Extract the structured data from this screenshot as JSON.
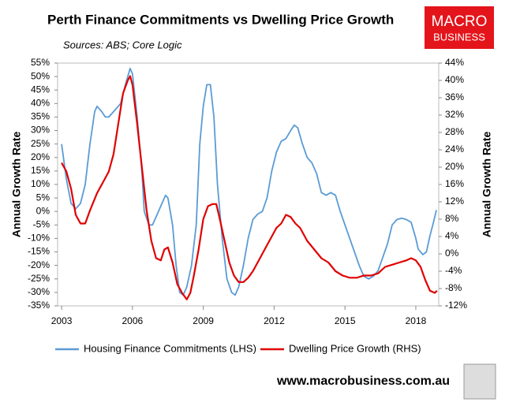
{
  "chart_data": {
    "type": "line",
    "title": "Perth Finance Commitments vs Dwelling Price Growth",
    "subtitle": "Sources: ABS; Core Logic",
    "ylabel": "Annual Growth Rate",
    "y2label": "Annual Growth Rate",
    "logo": [
      "MACRO",
      "BUSINESS"
    ],
    "footer": "www.macrobusiness.com.au",
    "xlim": [
      2002.83,
      2018.97
    ],
    "xticks": [
      2003,
      2006,
      2009,
      2012,
      2015,
      2018
    ],
    "ylim": [
      -35,
      55
    ],
    "yticks": [
      {
        "value": -35,
        "label": "-35%"
      },
      {
        "value": -30,
        "label": "-30%"
      },
      {
        "value": -25,
        "label": "-25%"
      },
      {
        "value": -20,
        "label": "-20%"
      },
      {
        "value": -15,
        "label": "-15%"
      },
      {
        "value": -10,
        "label": "-10%"
      },
      {
        "value": -5,
        "label": "-5%"
      },
      {
        "value": 0,
        "label": "0%"
      },
      {
        "value": 5,
        "label": "5%"
      },
      {
        "value": 10,
        "label": "10%"
      },
      {
        "value": 15,
        "label": "15%"
      },
      {
        "value": 20,
        "label": "20%"
      },
      {
        "value": 25,
        "label": "25%"
      },
      {
        "value": 30,
        "label": "30%"
      },
      {
        "value": 35,
        "label": "35%"
      },
      {
        "value": 40,
        "label": "40%"
      },
      {
        "value": 45,
        "label": "45%"
      },
      {
        "value": 50,
        "label": "50%"
      },
      {
        "value": 55,
        "label": "55%"
      }
    ],
    "y2lim": [
      -12,
      44
    ],
    "y2ticks": [
      {
        "value": -12,
        "label": "-12%"
      },
      {
        "value": -8,
        "label": "-8%"
      },
      {
        "value": -4,
        "label": "-4%"
      },
      {
        "value": 0,
        "label": "0%"
      },
      {
        "value": 4,
        "label": "4%"
      },
      {
        "value": 8,
        "label": "8%"
      },
      {
        "value": 12,
        "label": "12%"
      },
      {
        "value": 16,
        "label": "16%"
      },
      {
        "value": 20,
        "label": "20%"
      },
      {
        "value": 24,
        "label": "24%"
      },
      {
        "value": 28,
        "label": "28%"
      },
      {
        "value": 32,
        "label": "32%"
      },
      {
        "value": 36,
        "label": "36%"
      },
      {
        "value": 40,
        "label": "40%"
      },
      {
        "value": 44,
        "label": "44%"
      }
    ],
    "series": [
      {
        "name": "Housing Finance Commitments (LHS)",
        "color": "#5b9bd5",
        "axis": "y",
        "x": [
          2003.0,
          2003.2,
          2003.4,
          2003.6,
          2003.8,
          2004.0,
          2004.2,
          2004.4,
          2004.5,
          2004.7,
          2004.85,
          2005.0,
          2005.2,
          2005.5,
          2005.7,
          2005.9,
          2006.0,
          2006.2,
          2006.4,
          2006.5,
          2006.7,
          2006.85,
          2007.0,
          2007.2,
          2007.4,
          2007.5,
          2007.7,
          2007.85,
          2008.0,
          2008.15,
          2008.3,
          2008.5,
          2008.7,
          2008.85,
          2009.0,
          2009.15,
          2009.3,
          2009.45,
          2009.6,
          2009.8,
          2010.0,
          2010.2,
          2010.35,
          2010.5,
          2010.7,
          2010.9,
          2011.1,
          2011.3,
          2011.5,
          2011.7,
          2011.9,
          2012.1,
          2012.3,
          2012.5,
          2012.7,
          2012.85,
          2013.0,
          2013.2,
          2013.4,
          2013.6,
          2013.8,
          2014.0,
          2014.2,
          2014.4,
          2014.6,
          2014.8,
          2015.0,
          2015.2,
          2015.4,
          2015.6,
          2015.8,
          2016.0,
          2016.2,
          2016.4,
          2016.6,
          2016.8,
          2017.0,
          2017.2,
          2017.4,
          2017.6,
          2017.8,
          2018.0,
          2018.1,
          2018.3,
          2018.45,
          2018.6,
          2018.75,
          2018.87
        ],
        "values": [
          25,
          12,
          3,
          1,
          3,
          10,
          25,
          37,
          39,
          37,
          35,
          35,
          37,
          40,
          47,
          53,
          51,
          35,
          15,
          0,
          -5,
          -5,
          -2,
          2,
          6,
          5,
          -5,
          -20,
          -30,
          -31,
          -28,
          -20,
          -5,
          25,
          39,
          47,
          47,
          35,
          10,
          -10,
          -25,
          -30,
          -31,
          -28,
          -20,
          -10,
          -3,
          -1,
          0,
          5,
          15,
          22,
          26,
          27,
          30,
          32,
          31,
          25,
          20,
          18,
          14,
          7,
          6,
          7,
          6,
          0,
          -5,
          -10,
          -15,
          -20,
          -24,
          -25,
          -24,
          -22,
          -17,
          -12,
          -5,
          -3,
          -2.5,
          -3,
          -4,
          -10,
          -14,
          -16,
          -15,
          -9,
          -4,
          0.5
        ]
      },
      {
        "name": "Dwelling Price Growth (RHS)",
        "color": "#e00000",
        "axis": "y2",
        "x": [
          2003.0,
          2003.2,
          2003.4,
          2003.6,
          2003.8,
          2004.0,
          2004.2,
          2004.5,
          2004.8,
          2005.0,
          2005.2,
          2005.4,
          2005.6,
          2005.8,
          2005.9,
          2006.0,
          2006.2,
          2006.4,
          2006.6,
          2006.8,
          2007.0,
          2007.2,
          2007.35,
          2007.5,
          2007.7,
          2007.9,
          2008.1,
          2008.3,
          2008.45,
          2008.6,
          2008.8,
          2009.0,
          2009.2,
          2009.4,
          2009.55,
          2009.7,
          2009.9,
          2010.1,
          2010.3,
          2010.5,
          2010.7,
          2010.9,
          2011.1,
          2011.3,
          2011.6,
          2011.9,
          2012.1,
          2012.3,
          2012.5,
          2012.7,
          2012.9,
          2013.1,
          2013.4,
          2013.7,
          2014.0,
          2014.3,
          2014.6,
          2014.9,
          2015.2,
          2015.5,
          2015.8,
          2016.1,
          2016.4,
          2016.7,
          2017.0,
          2017.3,
          2017.6,
          2017.8,
          2018.0,
          2018.2,
          2018.4,
          2018.6,
          2018.8,
          2018.9
        ],
        "values": [
          21,
          19,
          15,
          9,
          7,
          7,
          10,
          14,
          17,
          19,
          23,
          30,
          37,
          40,
          41,
          39,
          30,
          20,
          10,
          3,
          -1,
          -1.5,
          1,
          1.5,
          -2,
          -7,
          -9,
          -10.5,
          -9,
          -5,
          1,
          8,
          11,
          11.5,
          11.5,
          8,
          3,
          -2,
          -5,
          -6.5,
          -6.5,
          -5.5,
          -4,
          -2,
          1,
          4,
          6,
          7,
          9,
          8.5,
          7,
          6,
          3,
          1,
          -1,
          -2,
          -4,
          -5,
          -5.5,
          -5.5,
          -5,
          -5,
          -4.5,
          -3,
          -2.5,
          -2,
          -1.5,
          -1,
          -1.5,
          -3,
          -6,
          -8.5,
          -9,
          -8.5
        ]
      }
    ]
  }
}
